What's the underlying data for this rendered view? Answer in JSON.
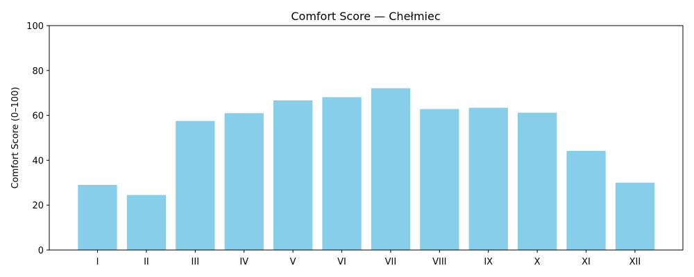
{
  "chart_data": {
    "type": "bar",
    "title": "Comfort Score — Chełmiec",
    "xlabel": "",
    "ylabel": "Comfort Score (0–100)",
    "categories": [
      "I",
      "II",
      "III",
      "IV",
      "V",
      "VI",
      "VII",
      "VIII",
      "IX",
      "X",
      "XI",
      "XII"
    ],
    "values": [
      29.0,
      24.5,
      57.5,
      61.0,
      66.7,
      68.1,
      72.1,
      62.8,
      63.4,
      61.2,
      44.2,
      30.0
    ],
    "ylim": [
      0,
      100
    ],
    "yticks": [
      0,
      20,
      40,
      60,
      80,
      100
    ],
    "bar_color": "#87ceeb",
    "grid": false,
    "legend": "none"
  }
}
